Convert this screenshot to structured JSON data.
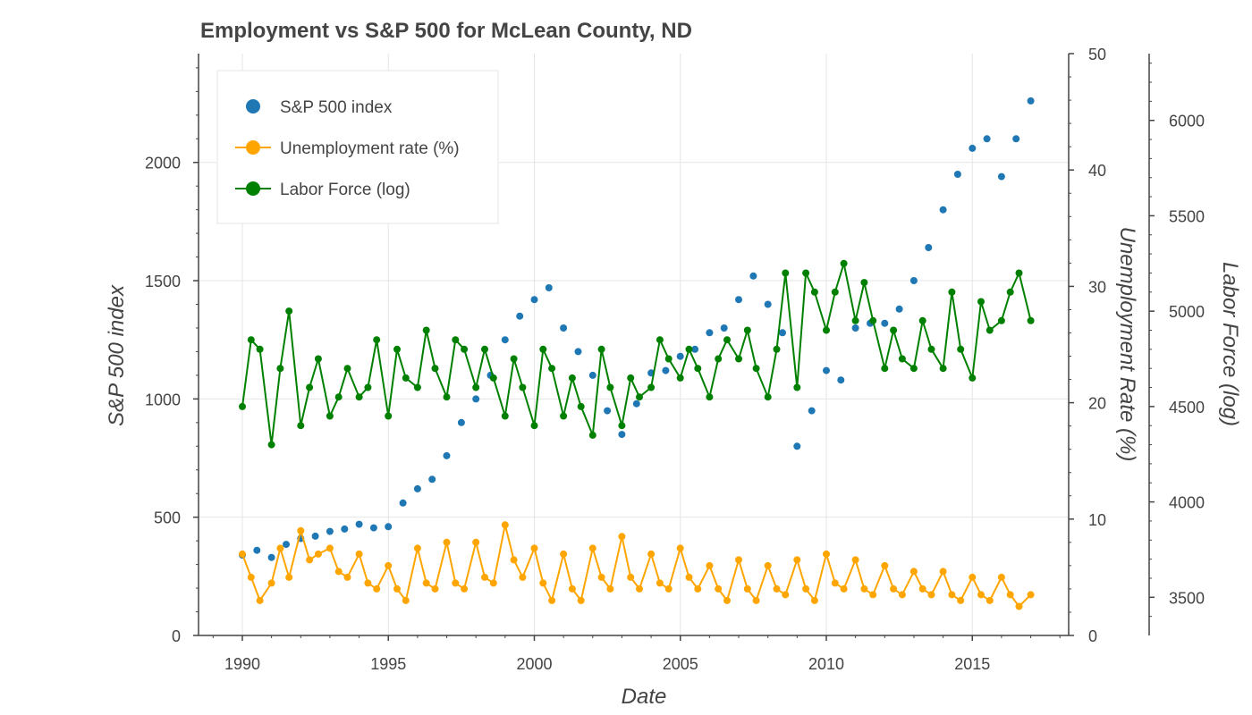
{
  "chart_data": {
    "type": "scatter",
    "title": "Employment vs S&P 500 for McLean County, ND",
    "xlabel": "Date",
    "ylabel": "S&P 500 index",
    "y2label": "Unemployment Rate (%)",
    "y3label": "Labor Force (log)",
    "xlim": [
      1988.5,
      2018.3
    ],
    "ylim": [
      0,
      2460
    ],
    "y2lim": [
      0,
      50
    ],
    "y3lim": [
      3300,
      6350
    ],
    "x_ticks": [
      1990,
      1995,
      2000,
      2005,
      2010,
      2015
    ],
    "y_ticks": [
      0,
      500,
      1000,
      1500,
      2000
    ],
    "y2_ticks": [
      0,
      10,
      20,
      30,
      40,
      50
    ],
    "y3_ticks": [
      3500,
      4000,
      4500,
      5000,
      5500,
      6000
    ],
    "grid": true,
    "legend_position": "top-left",
    "legend": [
      "S&P 500 index",
      "Unemployment rate (%)",
      "Labor Force (log)"
    ],
    "colors": {
      "sp500": "#1f77b4",
      "unemployment": "#ffa500",
      "labor": "#008000",
      "text": "#444444",
      "grid": "#e5e5e5"
    },
    "series": [
      {
        "name": "S&P 500 index",
        "axis": "left",
        "style": "markers",
        "points": [
          [
            1990.0,
            340
          ],
          [
            1990.5,
            360
          ],
          [
            1991.0,
            330
          ],
          [
            1991.5,
            385
          ],
          [
            1992.0,
            410
          ],
          [
            1992.5,
            420
          ],
          [
            1993.0,
            440
          ],
          [
            1993.5,
            450
          ],
          [
            1994.0,
            470
          ],
          [
            1994.5,
            455
          ],
          [
            1995.0,
            460
          ],
          [
            1995.5,
            560
          ],
          [
            1996.0,
            620
          ],
          [
            1996.5,
            660
          ],
          [
            1997.0,
            760
          ],
          [
            1997.5,
            900
          ],
          [
            1998.0,
            1000
          ],
          [
            1998.5,
            1100
          ],
          [
            1999.0,
            1250
          ],
          [
            1999.5,
            1350
          ],
          [
            2000.0,
            1420
          ],
          [
            2000.5,
            1470
          ],
          [
            2001.0,
            1300
          ],
          [
            2001.5,
            1200
          ],
          [
            2002.0,
            1100
          ],
          [
            2002.5,
            950
          ],
          [
            2003.0,
            850
          ],
          [
            2003.5,
            980
          ],
          [
            2004.0,
            1110
          ],
          [
            2004.5,
            1120
          ],
          [
            2005.0,
            1180
          ],
          [
            2005.5,
            1210
          ],
          [
            2006.0,
            1280
          ],
          [
            2006.5,
            1300
          ],
          [
            2007.0,
            1420
          ],
          [
            2007.5,
            1520
          ],
          [
            2008.0,
            1400
          ],
          [
            2008.5,
            1280
          ],
          [
            2009.0,
            800
          ],
          [
            2009.5,
            950
          ],
          [
            2010.0,
            1120
          ],
          [
            2010.5,
            1080
          ],
          [
            2011.0,
            1300
          ],
          [
            2011.5,
            1320
          ],
          [
            2012.0,
            1320
          ],
          [
            2012.5,
            1380
          ],
          [
            2013.0,
            1500
          ],
          [
            2013.5,
            1640
          ],
          [
            2014.0,
            1800
          ],
          [
            2014.5,
            1950
          ],
          [
            2015.0,
            2060
          ],
          [
            2015.5,
            2100
          ],
          [
            2016.0,
            1940
          ],
          [
            2016.5,
            2100
          ],
          [
            2017.0,
            2260
          ]
        ]
      },
      {
        "name": "Unemployment rate (%)",
        "axis": "right1",
        "style": "line-markers",
        "points": [
          [
            1990.0,
            7
          ],
          [
            1990.3,
            5
          ],
          [
            1990.6,
            3
          ],
          [
            1991.0,
            4.5
          ],
          [
            1991.3,
            7.5
          ],
          [
            1991.6,
            5
          ],
          [
            1992.0,
            9
          ],
          [
            1992.3,
            6.5
          ],
          [
            1992.6,
            7
          ],
          [
            1993.0,
            7.5
          ],
          [
            1993.3,
            5.5
          ],
          [
            1993.6,
            5
          ],
          [
            1994.0,
            7
          ],
          [
            1994.3,
            4.5
          ],
          [
            1994.6,
            4
          ],
          [
            1995.0,
            6
          ],
          [
            1995.3,
            4
          ],
          [
            1995.6,
            3
          ],
          [
            1996.0,
            7.5
          ],
          [
            1996.3,
            4.5
          ],
          [
            1996.6,
            4
          ],
          [
            1997.0,
            8
          ],
          [
            1997.3,
            4.5
          ],
          [
            1997.6,
            4
          ],
          [
            1998.0,
            8
          ],
          [
            1998.3,
            5
          ],
          [
            1998.6,
            4.5
          ],
          [
            1999.0,
            9.5
          ],
          [
            1999.3,
            6.5
          ],
          [
            1999.6,
            5
          ],
          [
            2000.0,
            7.5
          ],
          [
            2000.3,
            4.5
          ],
          [
            2000.6,
            3
          ],
          [
            2001.0,
            7
          ],
          [
            2001.3,
            4
          ],
          [
            2001.6,
            3
          ],
          [
            2002.0,
            7.5
          ],
          [
            2002.3,
            5
          ],
          [
            2002.6,
            4
          ],
          [
            2003.0,
            8.5
          ],
          [
            2003.3,
            5
          ],
          [
            2003.6,
            4
          ],
          [
            2004.0,
            7
          ],
          [
            2004.3,
            4.5
          ],
          [
            2004.6,
            4
          ],
          [
            2005.0,
            7.5
          ],
          [
            2005.3,
            5
          ],
          [
            2005.6,
            4
          ],
          [
            2006.0,
            6
          ],
          [
            2006.3,
            4
          ],
          [
            2006.6,
            3
          ],
          [
            2007.0,
            6.5
          ],
          [
            2007.3,
            4
          ],
          [
            2007.6,
            3
          ],
          [
            2008.0,
            6
          ],
          [
            2008.3,
            4
          ],
          [
            2008.6,
            3.5
          ],
          [
            2009.0,
            6.5
          ],
          [
            2009.3,
            4
          ],
          [
            2009.6,
            3
          ],
          [
            2010.0,
            7
          ],
          [
            2010.3,
            4.5
          ],
          [
            2010.6,
            4
          ],
          [
            2011.0,
            6.5
          ],
          [
            2011.3,
            4
          ],
          [
            2011.6,
            3.5
          ],
          [
            2012.0,
            6
          ],
          [
            2012.3,
            4
          ],
          [
            2012.6,
            3.5
          ],
          [
            2013.0,
            5.5
          ],
          [
            2013.3,
            4
          ],
          [
            2013.6,
            3.5
          ],
          [
            2014.0,
            5.5
          ],
          [
            2014.3,
            3.5
          ],
          [
            2014.6,
            3
          ],
          [
            2015.0,
            5
          ],
          [
            2015.3,
            3.5
          ],
          [
            2015.6,
            3
          ],
          [
            2016.0,
            5
          ],
          [
            2016.3,
            3.5
          ],
          [
            2016.6,
            2.5
          ],
          [
            2017.0,
            3.5
          ]
        ]
      },
      {
        "name": "Labor Force (log)",
        "axis": "right2",
        "style": "line-markers",
        "points": [
          [
            1990.0,
            4500
          ],
          [
            1990.3,
            4850
          ],
          [
            1990.6,
            4800
          ],
          [
            1991.0,
            4300
          ],
          [
            1991.3,
            4700
          ],
          [
            1991.6,
            5000
          ],
          [
            1992.0,
            4400
          ],
          [
            1992.3,
            4600
          ],
          [
            1992.6,
            4750
          ],
          [
            1993.0,
            4450
          ],
          [
            1993.3,
            4550
          ],
          [
            1993.6,
            4700
          ],
          [
            1994.0,
            4550
          ],
          [
            1994.3,
            4600
          ],
          [
            1994.6,
            4850
          ],
          [
            1995.0,
            4450
          ],
          [
            1995.3,
            4800
          ],
          [
            1995.6,
            4650
          ],
          [
            1996.0,
            4600
          ],
          [
            1996.3,
            4900
          ],
          [
            1996.6,
            4700
          ],
          [
            1997.0,
            4550
          ],
          [
            1997.3,
            4850
          ],
          [
            1997.6,
            4800
          ],
          [
            1998.0,
            4600
          ],
          [
            1998.3,
            4800
          ],
          [
            1998.6,
            4650
          ],
          [
            1999.0,
            4450
          ],
          [
            1999.3,
            4750
          ],
          [
            1999.6,
            4600
          ],
          [
            2000.0,
            4400
          ],
          [
            2000.3,
            4800
          ],
          [
            2000.6,
            4700
          ],
          [
            2001.0,
            4450
          ],
          [
            2001.3,
            4650
          ],
          [
            2001.6,
            4500
          ],
          [
            2002.0,
            4350
          ],
          [
            2002.3,
            4800
          ],
          [
            2002.6,
            4600
          ],
          [
            2003.0,
            4400
          ],
          [
            2003.3,
            4650
          ],
          [
            2003.6,
            4550
          ],
          [
            2004.0,
            4600
          ],
          [
            2004.3,
            4850
          ],
          [
            2004.6,
            4750
          ],
          [
            2005.0,
            4650
          ],
          [
            2005.3,
            4800
          ],
          [
            2005.6,
            4700
          ],
          [
            2006.0,
            4550
          ],
          [
            2006.3,
            4750
          ],
          [
            2006.6,
            4850
          ],
          [
            2007.0,
            4750
          ],
          [
            2007.3,
            4900
          ],
          [
            2007.6,
            4700
          ],
          [
            2008.0,
            4550
          ],
          [
            2008.3,
            4800
          ],
          [
            2008.6,
            5200
          ],
          [
            2009.0,
            4600
          ],
          [
            2009.3,
            5200
          ],
          [
            2009.6,
            5100
          ],
          [
            2010.0,
            4900
          ],
          [
            2010.3,
            5100
          ],
          [
            2010.6,
            5250
          ],
          [
            2011.0,
            4950
          ],
          [
            2011.3,
            5150
          ],
          [
            2011.6,
            4950
          ],
          [
            2012.0,
            4700
          ],
          [
            2012.3,
            4900
          ],
          [
            2012.6,
            4750
          ],
          [
            2013.0,
            4700
          ],
          [
            2013.3,
            4950
          ],
          [
            2013.6,
            4800
          ],
          [
            2014.0,
            4700
          ],
          [
            2014.3,
            5100
          ],
          [
            2014.6,
            4800
          ],
          [
            2015.0,
            4650
          ],
          [
            2015.3,
            5050
          ],
          [
            2015.6,
            4900
          ],
          [
            2016.0,
            4950
          ],
          [
            2016.3,
            5100
          ],
          [
            2016.6,
            5200
          ],
          [
            2017.0,
            4950
          ]
        ]
      }
    ]
  }
}
